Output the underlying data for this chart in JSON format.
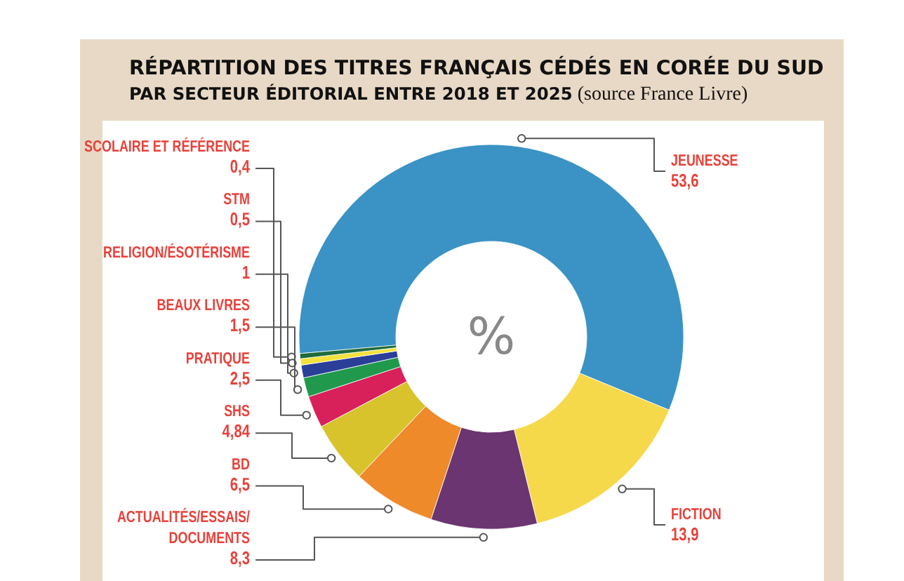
{
  "chart_data": {
    "type": "donut",
    "title": "RÉPARTITION DES TITRES FRANÇAIS CÉDÉS EN CORÉE DU SUD",
    "subtitle": "PAR SECTEUR ÉDITORIAL ENTRE 2018 ET 2025",
    "annotations": [
      "(source France Livre)",
      "%"
    ],
    "categories": [
      "JEUNESSE",
      "FICTION",
      "ACTUALITÉS/ESSAIS/ DOCUMENTS",
      "BD",
      "SHS",
      "PRATIQUE",
      "BEAUX LIVRES",
      "RELIGION/ÉSOTÉRISME",
      "STM",
      "SCOLAIRE ET RÉFÉRENCE"
    ],
    "values": [
      53.6,
      13.9,
      8.3,
      6.5,
      4.84,
      2.5,
      1.5,
      1,
      0.5,
      0.4
    ],
    "value_labels": [
      "53,6",
      "13,9",
      "8,3",
      "6,5",
      "4,84",
      "2,5",
      "1,5",
      "1",
      "0,5",
      "0,4"
    ],
    "colors": [
      "#3a93c4",
      "#f6d94b",
      "#6a3570",
      "#ee8a2a",
      "#d8c32d",
      "#d8205a",
      "#21994c",
      "#2a3f98",
      "#f2e23c",
      "#1f6b3a"
    ]
  }
}
